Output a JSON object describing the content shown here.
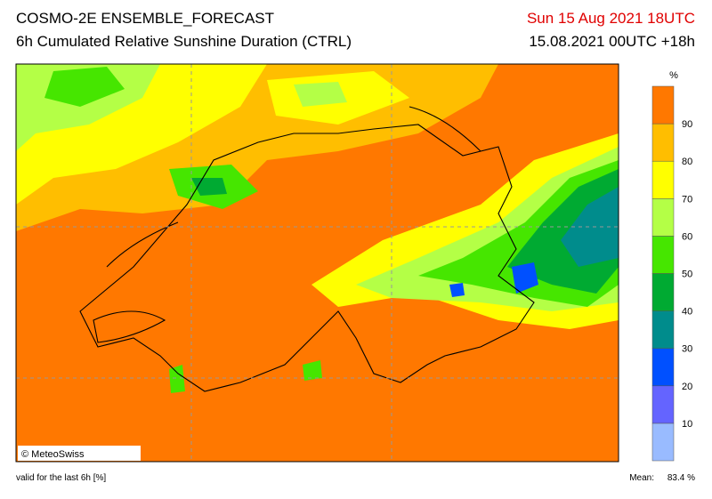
{
  "header": {
    "title": "COSMO-2E ENSEMBLE_FORECAST",
    "subtitle": "6h Cumulated Relative Sunshine Duration (CTRL)",
    "run_time": "Sun 15 Aug 2021 18UTC",
    "valid_time": "15.08.2021 00UTC +18h"
  },
  "map": {
    "copyright": "© MeteoSwiss"
  },
  "colorbar": {
    "unit": "%",
    "ticks": [
      10,
      20,
      30,
      40,
      50,
      60,
      70,
      80,
      90
    ],
    "colors": [
      "#99bbff",
      "#6464ff",
      "#0050ff",
      "#008c8c",
      "#00aa32",
      "#46e600",
      "#b4ff46",
      "#ffff00",
      "#ffbe00",
      "#ff7800"
    ]
  },
  "footer": {
    "note": "valid for the last 6h [%]",
    "mean_label": "Mean:",
    "mean_value": "83.4 %"
  }
}
